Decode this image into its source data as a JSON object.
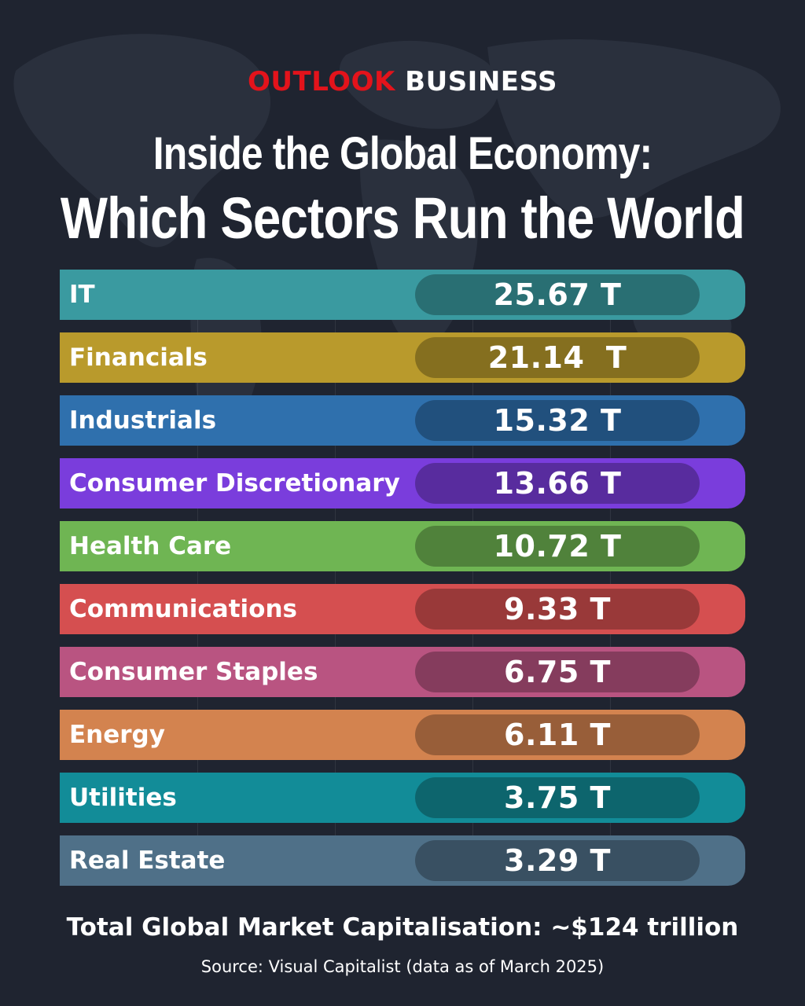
{
  "brand": {
    "part1": "OUTLOOK",
    "part2": "BUSINESS"
  },
  "title_line1": "Inside the Global Economy:",
  "title_line2": "Which Sectors Run the World",
  "chart_data": {
    "type": "table",
    "categories": [
      "IT",
      "Financials",
      "Industrials",
      "Consumer Discretionary",
      "Health Care",
      "Communications",
      "Consumer Staples",
      "Energy",
      "Utilities",
      "Real Estate"
    ],
    "values": [
      25.67,
      21.14,
      15.32,
      13.66,
      10.72,
      9.33,
      6.75,
      6.11,
      3.75,
      3.29
    ],
    "value_labels": [
      "25.67 T",
      "21.14  T",
      "15.32 T",
      "13.66 T",
      "10.72 T",
      "9.33 T",
      "6.75 T",
      "6.11 T",
      "3.75 T",
      "3.29 T"
    ],
    "colors": [
      "#3a9aa0",
      "#b99a2c",
      "#2f70ad",
      "#7a3ddc",
      "#6fb553",
      "#d54f50",
      "#b95481",
      "#d3834f",
      "#128c98",
      "#4f7088"
    ]
  },
  "total_text": "Total Global Market Capitalisation: ~$124 trillion",
  "source_text": "Source: Visual Capitalist (data as of March 2025)"
}
